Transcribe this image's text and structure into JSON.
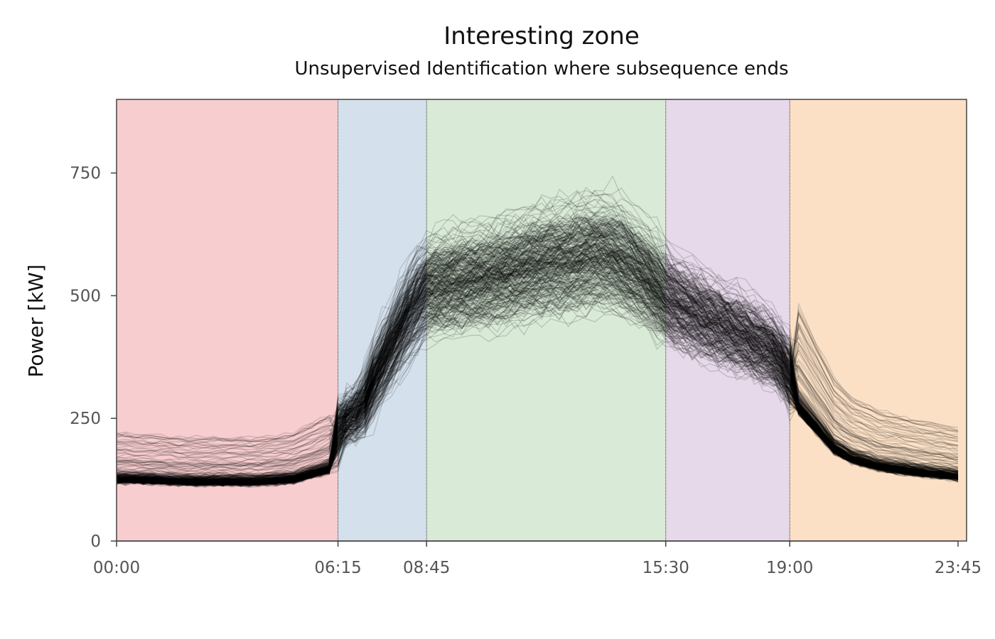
{
  "chart_data": {
    "type": "line",
    "title": "Interesting zone",
    "subtitle": "Unsupervised Identification where subsequence ends",
    "xlabel": "",
    "ylabel": "Power [kW]",
    "x_ticks": [
      "00:00",
      "06:15",
      "08:45",
      "15:30",
      "19:00",
      "23:45"
    ],
    "y_ticks": [
      0,
      250,
      500,
      750
    ],
    "xlim_minutes": [
      0,
      1425
    ],
    "ylim": [
      0,
      900
    ],
    "grid": false,
    "legend": "none",
    "line_color": "#000000",
    "zones": [
      {
        "start": "00:00",
        "end": "06:15",
        "color": "#f7cdcf"
      },
      {
        "start": "06:15",
        "end": "08:45",
        "color": "#d4e1ec"
      },
      {
        "start": "08:45",
        "end": "15:30",
        "color": "#d9ead7"
      },
      {
        "start": "15:30",
        "end": "19:00",
        "color": "#e6d9ea"
      },
      {
        "start": "19:00",
        "end": "23:45",
        "color": "#fbe0c6"
      }
    ],
    "typical_profile": [
      [
        "00:00",
        120
      ],
      [
        "01:00",
        118
      ],
      [
        "02:00",
        115
      ],
      [
        "03:00",
        115
      ],
      [
        "04:00",
        115
      ],
      [
        "05:00",
        120
      ],
      [
        "05:30",
        130
      ],
      [
        "06:00",
        140
      ],
      [
        "06:15",
        240
      ],
      [
        "06:45",
        260
      ],
      [
        "07:00",
        280
      ],
      [
        "07:15",
        330
      ],
      [
        "07:45",
        400
      ],
      [
        "08:15",
        470
      ],
      [
        "08:45",
        520
      ],
      [
        "10:00",
        535
      ],
      [
        "11:00",
        550
      ],
      [
        "12:00",
        570
      ],
      [
        "13:00",
        580
      ],
      [
        "13:30",
        590
      ],
      [
        "14:00",
        585
      ],
      [
        "15:00",
        540
      ],
      [
        "15:30",
        500
      ],
      [
        "16:30",
        460
      ],
      [
        "17:30",
        430
      ],
      [
        "18:30",
        390
      ],
      [
        "19:00",
        350
      ],
      [
        "19:15",
        260
      ],
      [
        "19:45",
        220
      ],
      [
        "20:15",
        180
      ],
      [
        "20:45",
        160
      ],
      [
        "21:30",
        145
      ],
      [
        "22:30",
        135
      ],
      [
        "23:45",
        125
      ]
    ],
    "profiles_shown": 300
  }
}
